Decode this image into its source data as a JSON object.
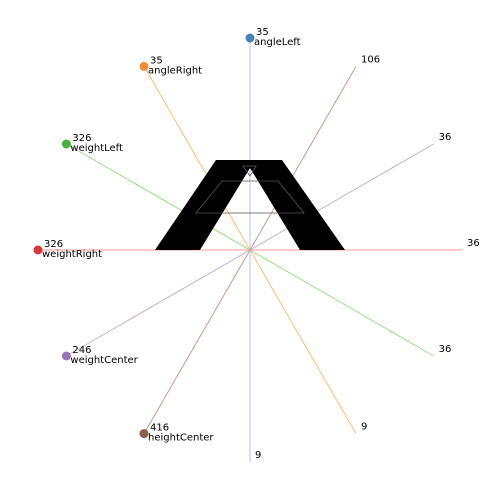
{
  "parameters": [
    {
      "name": "angleLeft",
      "value": "35",
      "range_end": "9",
      "color": "#4e7ebb",
      "line_color": "#aec7e8",
      "handle_pos": 1.0
    },
    {
      "name": "angleRight",
      "value": "35",
      "range_end": "9",
      "color": "#f28e3a",
      "line_color": "#ffbb78",
      "handle_pos": 1.0
    },
    {
      "name": "weightLeft",
      "value": "326",
      "range_end": "36",
      "color": "#4caf3f",
      "line_color": "#98df8a",
      "handle_pos": 1.0
    },
    {
      "name": "weightRight",
      "value": "326",
      "range_end": "36",
      "color": "#d1393d",
      "line_color": "#ff9896",
      "handle_pos": 1.0
    },
    {
      "name": "weightCenter",
      "value": "246",
      "range_end": "36",
      "color": "#9a72b8",
      "line_color": "#c5b0d5",
      "handle_pos": 1.0
    },
    {
      "name": "heightCenter",
      "value": "416",
      "range_end": "106",
      "color": "#8c5d52",
      "line_color": "#c49c94",
      "handle_pos": 1.0
    }
  ],
  "glyph": {
    "character": "A",
    "fill": "#000000",
    "counter_stroke": "#555555"
  }
}
